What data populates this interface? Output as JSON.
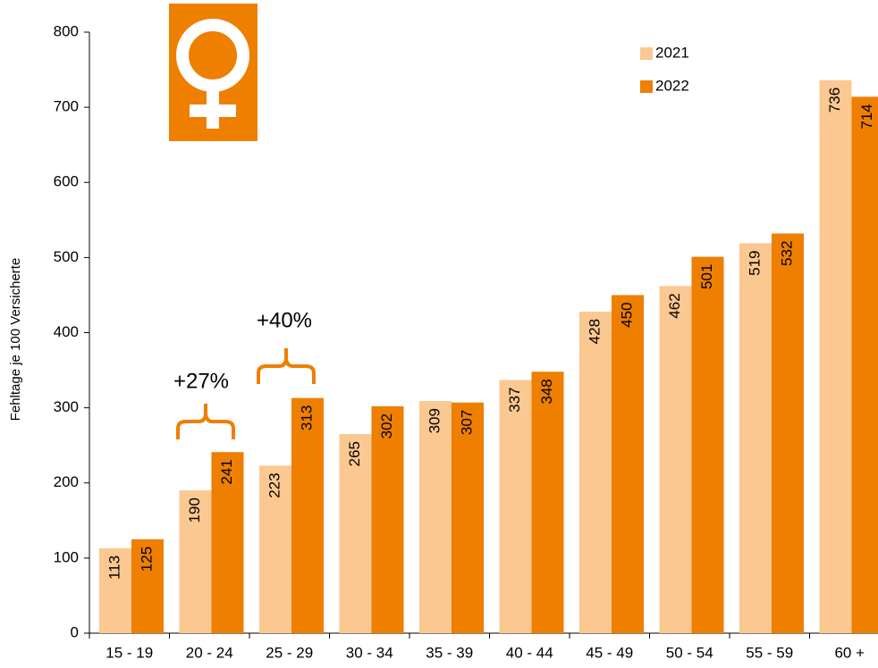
{
  "chart_data": {
    "type": "bar",
    "y_label": "Fehltage je 100 Versicherte",
    "categories": [
      "15 - 19",
      "20 - 24",
      "25 - 29",
      "30 - 34",
      "35 - 39",
      "40 - 44",
      "45 - 49",
      "50 - 54",
      "55 - 59",
      "60 +"
    ],
    "series": [
      {
        "name": "2021",
        "color": "#fac890",
        "values": [
          113,
          190,
          223,
          265,
          309,
          337,
          428,
          462,
          519,
          736
        ]
      },
      {
        "name": "2022",
        "color": "#ee7f00",
        "values": [
          125,
          241,
          313,
          302,
          307,
          348,
          450,
          501,
          532,
          714
        ]
      }
    ],
    "annotations": [
      "+27%",
      "+40%"
    ],
    "ylim": [
      0,
      800
    ],
    "yticks": [
      0,
      100,
      200,
      300,
      400,
      500,
      600,
      700,
      800
    ],
    "grid": false
  }
}
